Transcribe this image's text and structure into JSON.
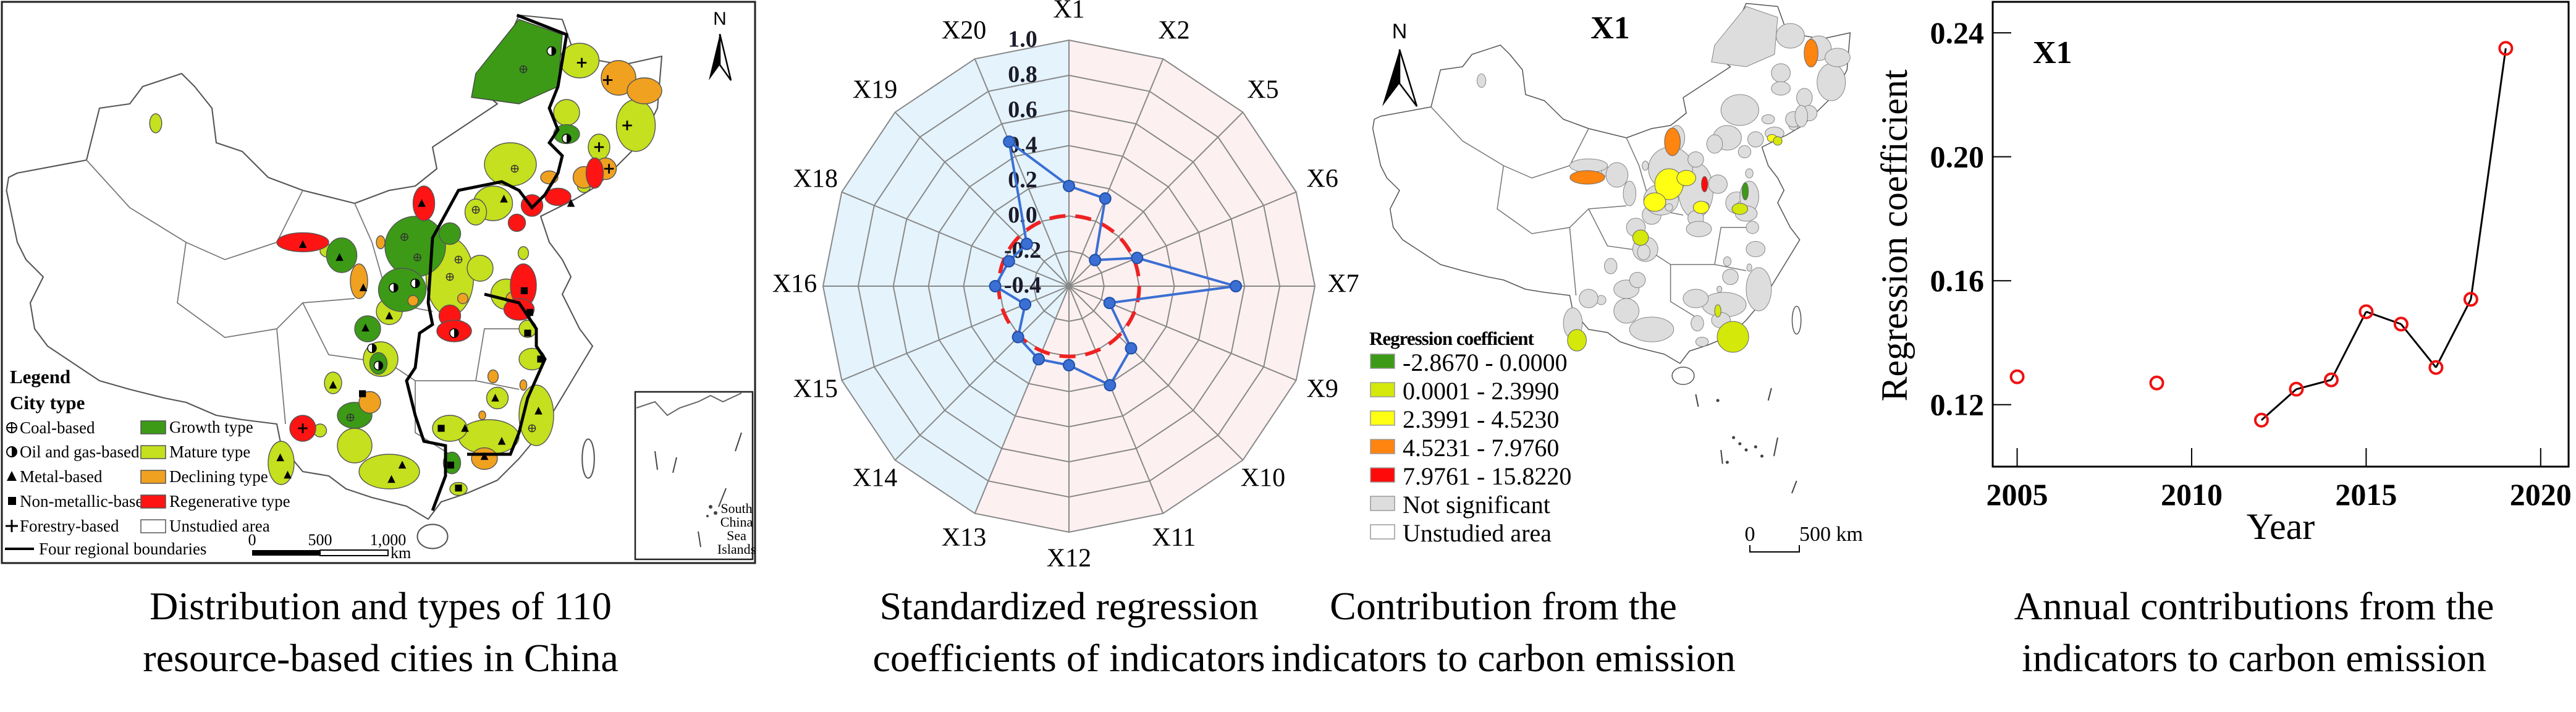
{
  "panels": {
    "map_types": {
      "caption": [
        "Distribution and types of 110",
        "resource-based cities in China"
      ],
      "north_label": "N",
      "legend": {
        "title": "Legend",
        "subtitle": "City type",
        "symbols": [
          {
            "icon": "circled-plus-icon",
            "label": "Coal-based"
          },
          {
            "icon": "half-filled-circle-icon",
            "label": "Oil and gas-based"
          },
          {
            "icon": "triangle-icon",
            "label": "Metal-based"
          },
          {
            "icon": "square-icon",
            "label": "Non-metallic-based"
          },
          {
            "icon": "plus-icon",
            "label": "Forestry-based"
          }
        ],
        "types": [
          {
            "label": "Growth type",
            "color": "#3c9a17"
          },
          {
            "label": "Mature type",
            "color": "#c4e01e"
          },
          {
            "label": "Declining type",
            "color": "#f0a11f"
          },
          {
            "label": "Regenerative type",
            "color": "#ff1414"
          },
          {
            "label": "Unstudied area",
            "color": "#ffffff"
          }
        ],
        "boundary_label": "Four regional boundaries"
      },
      "scale_bar": {
        "ticks": [
          "0",
          "500",
          "1,000"
        ],
        "unit": "km"
      },
      "inset_label": [
        "South",
        "China",
        "Sea",
        "Islands"
      ]
    },
    "radar": {
      "caption": [
        "Standardized regression",
        "coefficients of indicators"
      ]
    },
    "map_x1": {
      "title": "X1",
      "north_label": "N",
      "legend_title": "Regression coefficient",
      "classes": [
        {
          "label": "-2.8670 - 0.0000",
          "color": "#3c9a17"
        },
        {
          "label": "0.0001 - 2.3990",
          "color": "#d4e80a"
        },
        {
          "label": "2.3991 - 4.5230",
          "color": "#ffff14"
        },
        {
          "label": "4.5231 - 7.9760",
          "color": "#ff8410"
        },
        {
          "label": "7.9761 - 15.8220",
          "color": "#ff0a0a"
        },
        {
          "label": "Not significant",
          "color": "#dddddd"
        },
        {
          "label": "Unstudied area",
          "color": "#ffffff"
        }
      ],
      "scale_bar": {
        "zero": "0",
        "end": "500 km"
      },
      "caption": [
        "Contribution from the",
        "indicators to carbon emission"
      ]
    },
    "line": {
      "caption": [
        "Annual contributions from the",
        "indicators to carbon emission"
      ]
    }
  },
  "chart_data": [
    {
      "type": "radar",
      "categories": [
        "X1",
        "X2",
        "X5",
        "X6",
        "X7",
        "X9",
        "X10",
        "X11",
        "X12",
        "X13",
        "X14",
        "X15",
        "X16",
        "X18",
        "X19",
        "X20"
      ],
      "values": [
        0.17,
        0.14,
        -0.19,
        0.02,
        0.55,
        -0.15,
        0.1,
        0.21,
        0.05,
        0.05,
        0.01,
        -0.13,
        0.02,
        -0.03,
        -0.06,
        0.49
      ],
      "rlim": [
        -0.4,
        1.0
      ],
      "r_tick_labels": [
        "1.0",
        "0.8",
        "0.6",
        "0.4",
        "0.2",
        "0.0",
        "-0.2",
        "-0.4"
      ],
      "reference_circle": 0.0,
      "series_color": "#3b6fd3",
      "reference_color": "#ee2222",
      "sector_colors": {
        "positive_side": "#fdf0f0",
        "negative_side": "#e4f3fc"
      }
    },
    {
      "type": "line",
      "title": "X1",
      "xlabel": "Year",
      "ylabel": "Regression coefficient",
      "x": [
        2005,
        2006,
        2007,
        2008,
        2009,
        2010,
        2011,
        2012,
        2013,
        2014,
        2015,
        2016,
        2017,
        2018,
        2019
      ],
      "y": [
        0.129,
        null,
        null,
        null,
        0.127,
        null,
        null,
        0.115,
        0.125,
        0.128,
        0.15,
        0.146,
        0.132,
        0.154,
        0.235
      ],
      "xticks": [
        "2005",
        "2010",
        "2015",
        "2020"
      ],
      "yticks": [
        "0.12",
        "0.16",
        "0.20",
        "0.24"
      ],
      "xlim": [
        2004.3,
        2020.8
      ],
      "ylim": [
        0.1,
        0.25
      ],
      "marker_color": "#ee1111",
      "line_color": "#000000"
    }
  ]
}
